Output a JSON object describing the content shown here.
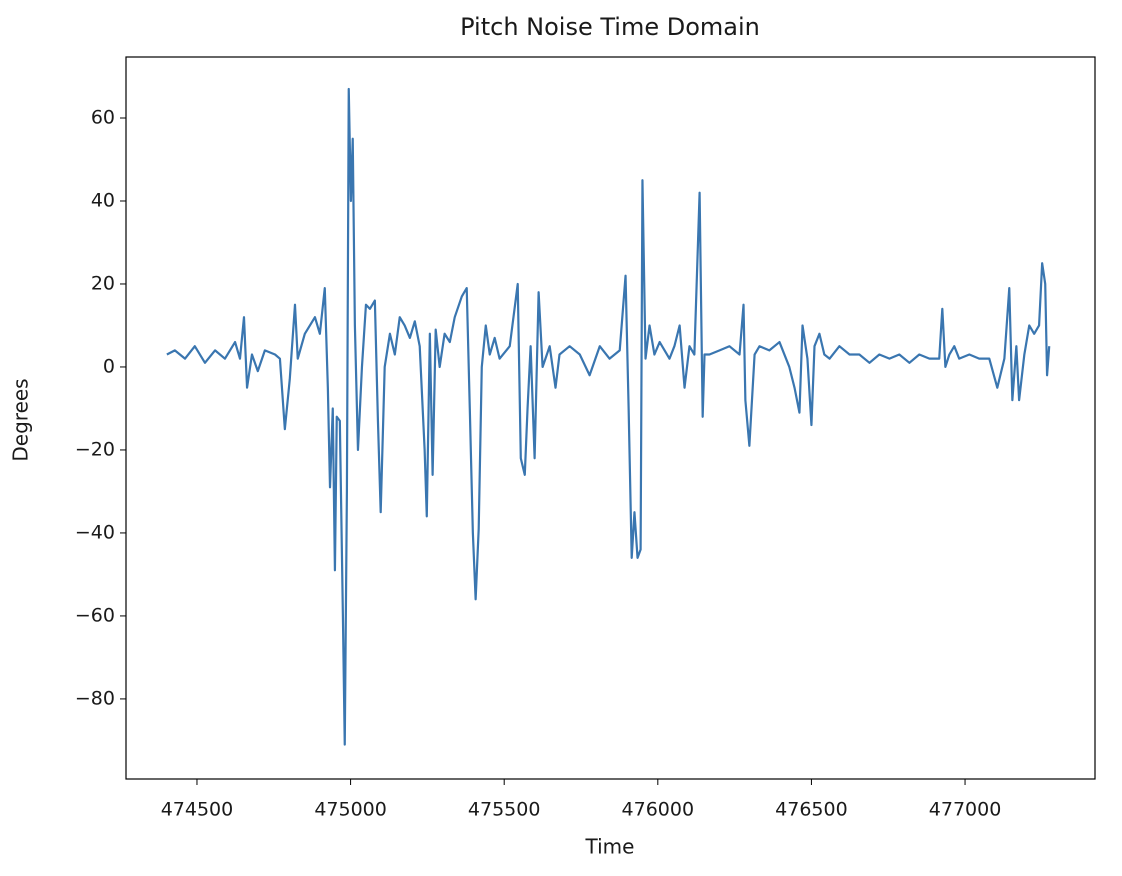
{
  "chart_data": {
    "type": "line",
    "title": "Pitch Noise Time Domain",
    "x_label": "Time",
    "y_label": "Degrees",
    "xlim": [
      474269,
      477423
    ],
    "ylim": [
      -99.3,
      74.7
    ],
    "xticks": [
      474500,
      475000,
      475500,
      476000,
      476500,
      477000
    ],
    "yticks": [
      {
        "value": -80,
        "label": "−80"
      },
      {
        "value": -60,
        "label": "−60"
      },
      {
        "value": -40,
        "label": "−40"
      },
      {
        "value": -20,
        "label": "−20"
      },
      0,
      20,
      40,
      60
    ],
    "grid": false,
    "x": [
      474402,
      474428,
      474461,
      474493,
      474526,
      474559,
      474591,
      474624,
      474640,
      474653,
      474663,
      474679,
      474698,
      474721,
      474754,
      474770,
      474786,
      474802,
      474819,
      474828,
      474851,
      474884,
      474900,
      474916,
      474926,
      474933,
      474942,
      474949,
      474955,
      474965,
      474975,
      474981,
      474988,
      474994,
      475001,
      475007,
      475014,
      475024,
      475037,
      475050,
      475063,
      475079,
      475089,
      475098,
      475111,
      475128,
      475144,
      475160,
      475176,
      475193,
      475209,
      475225,
      475241,
      475248,
      475258,
      475267,
      475277,
      475290,
      475306,
      475323,
      475339,
      475362,
      475378,
      475388,
      475398,
      475407,
      475417,
      475427,
      475440,
      475453,
      475469,
      475485,
      475518,
      475544,
      475554,
      475567,
      475576,
      475586,
      475599,
      475612,
      475625,
      475648,
      475667,
      475680,
      475713,
      475746,
      475778,
      475811,
      475843,
      475876,
      475895,
      475905,
      475915,
      475924,
      475934,
      475944,
      475950,
      475960,
      475973,
      475989,
      476006,
      476038,
      476054,
      476071,
      476087,
      476103,
      476119,
      476136,
      476146,
      476152,
      476168,
      476201,
      476233,
      476266,
      476279,
      476285,
      476298,
      476315,
      476331,
      476363,
      476396,
      476428,
      476445,
      476461,
      476471,
      476487,
      476500,
      476510,
      476526,
      476542,
      476559,
      476591,
      476624,
      476656,
      476689,
      476721,
      476754,
      476786,
      476819,
      476851,
      476884,
      476916,
      476926,
      476936,
      476949,
      476965,
      476981,
      477014,
      477046,
      477079,
      477105,
      477128,
      477144,
      477154,
      477167,
      477176,
      477193,
      477209,
      477225,
      477241,
      477251,
      477261,
      477267,
      477274
    ],
    "series": [
      {
        "color": "#3a76b0",
        "values": [
          3,
          4,
          2,
          5,
          1,
          4,
          2,
          6,
          2,
          12,
          -5,
          3,
          -1,
          4,
          3,
          2,
          -15,
          -3,
          15,
          2,
          8,
          12,
          8,
          19,
          -5,
          -29,
          -10,
          -49,
          -12,
          -13,
          -60,
          -91,
          -30,
          67,
          40,
          55,
          10,
          -20,
          0,
          15,
          14,
          16,
          -13,
          -35,
          0,
          8,
          3,
          12,
          10,
          7,
          11,
          5,
          -20,
          -36,
          8,
          -26,
          9,
          0,
          8,
          6,
          12,
          17,
          19,
          -10,
          -40,
          -56,
          -39,
          0,
          10,
          3,
          7,
          2,
          5,
          20,
          -22,
          -26,
          -10,
          5,
          -22,
          18,
          0,
          5,
          -5,
          3,
          5,
          3,
          -2,
          5,
          2,
          4,
          22,
          -10,
          -46,
          -35,
          -46,
          -44,
          45,
          2,
          10,
          3,
          6,
          2,
          5,
          10,
          -5,
          5,
          3,
          42,
          -12,
          3,
          3,
          4,
          5,
          3,
          15,
          -8,
          -19,
          3,
          5,
          4,
          6,
          0,
          -5,
          -11,
          10,
          2,
          -14,
          5,
          8,
          3,
          2,
          5,
          3,
          3,
          1,
          3,
          2,
          3,
          1,
          3,
          2,
          2,
          14,
          0,
          3,
          5,
          2,
          3,
          2,
          2,
          -5,
          2,
          19,
          -8,
          5,
          -8,
          3,
          10,
          8,
          10,
          25,
          20,
          -2,
          5
        ]
      }
    ]
  }
}
